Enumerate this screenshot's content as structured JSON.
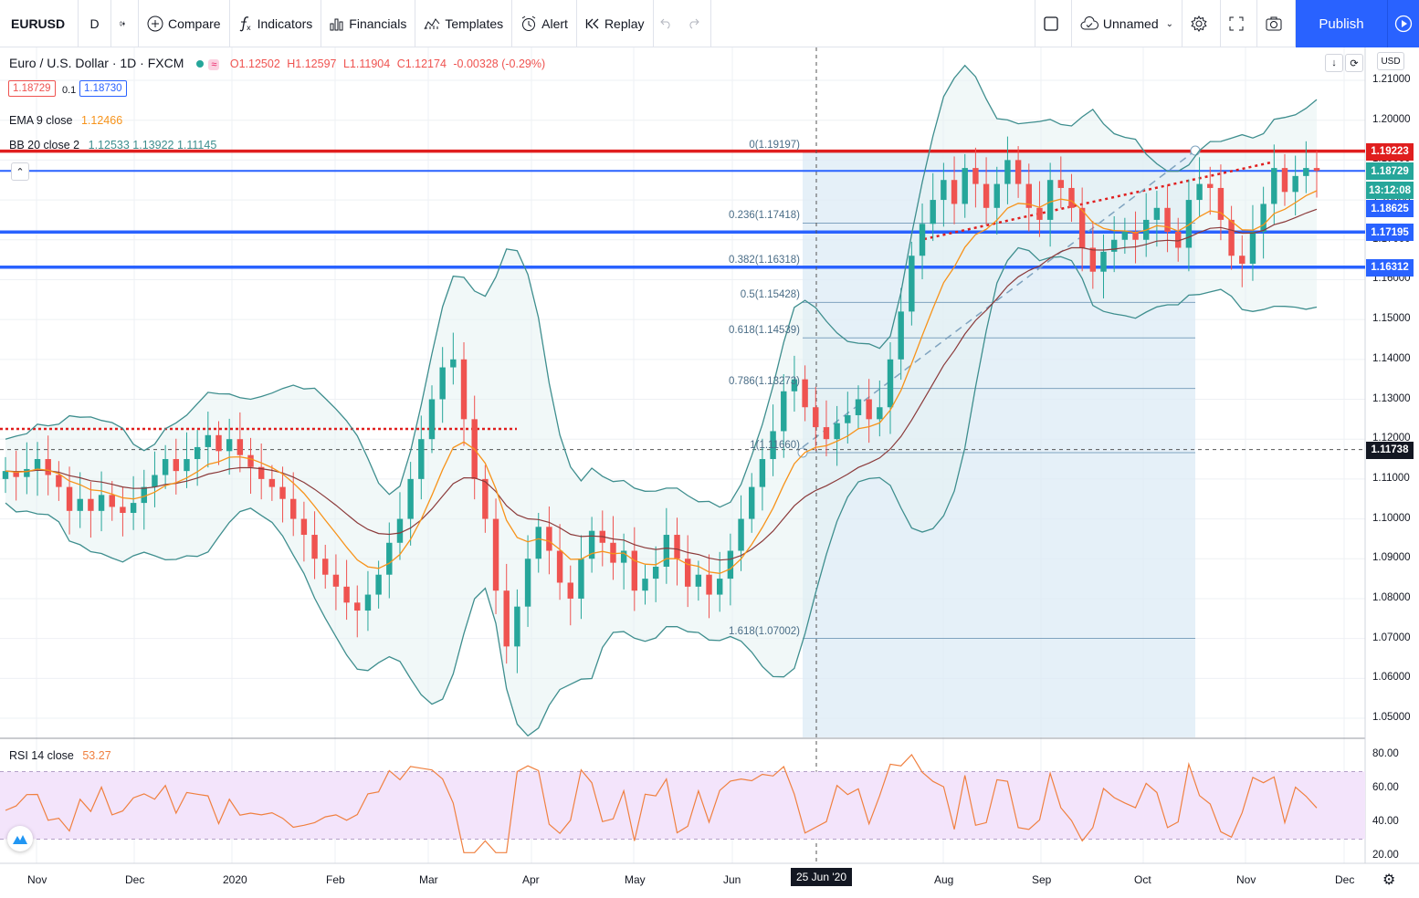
{
  "toolbar": {
    "symbol": "EURUSD",
    "interval": "D",
    "compare": "Compare",
    "indicators": "Indicators",
    "financials": "Financials",
    "templates": "Templates",
    "alert": "Alert",
    "replay": "Replay",
    "layout_name": "Unnamed",
    "publish": "Publish"
  },
  "legend": {
    "title": "Euro / U.S. Dollar · 1D · FXCM",
    "open": "O1.12502",
    "high": "H1.12597",
    "low": "L1.11904",
    "close": "C1.12174",
    "change": "-0.00328 (-0.29%)",
    "sell": "1.18729",
    "spread": "0.1",
    "buy": "1.18730",
    "ema_label": "EMA 9 close",
    "ema_value": "1.12466",
    "bb_label": "BB 20 close 2",
    "bb_values": "1.12533  1.13922  1.11145",
    "rsi_label": "RSI 14 close",
    "rsi_value": "53.27"
  },
  "currency": "USD",
  "price_axis": [
    "1.21000",
    "1.20000",
    "1.19000",
    "1.18000",
    "1.17000",
    "1.16000",
    "1.15000",
    "1.14000",
    "1.13000",
    "1.12000",
    "1.11000",
    "1.10000",
    "1.09000",
    "1.08000",
    "1.07000",
    "1.06000",
    "1.05000"
  ],
  "rsi_axis": [
    "80.00",
    "60.00",
    "40.00",
    "20.00"
  ],
  "time_axis": [
    "Nov",
    "Dec",
    "2020",
    "Feb",
    "Mar",
    "Apr",
    "May",
    "Jun",
    "Aug",
    "Sep",
    "Oct",
    "Nov",
    "Dec"
  ],
  "crosshair_date": "25 Jun '20",
  "badges": [
    {
      "text": "1.19223",
      "color": "#e01e1e"
    },
    {
      "text": "1.18729",
      "color": "#26a69a"
    },
    {
      "text": "13:12:08",
      "color": "#26a69a"
    },
    {
      "text": "1.18625",
      "color": "#2962ff"
    },
    {
      "text": "1.17195",
      "color": "#2962ff"
    },
    {
      "text": "1.16312",
      "color": "#2962ff"
    },
    {
      "text": "1.11738",
      "color": "#131722"
    }
  ],
  "fib_levels": [
    {
      "label": "0(1.19197)",
      "price": 1.19197
    },
    {
      "label": "0.236(1.17418)",
      "price": 1.17418
    },
    {
      "label": "0.382(1.16318)",
      "price": 1.16318
    },
    {
      "label": "0.5(1.15428)",
      "price": 1.15428
    },
    {
      "label": "0.618(1.14539)",
      "price": 1.14539
    },
    {
      "label": "0.786(1.13273)",
      "price": 1.13273
    },
    {
      "label": "1(1.11660)",
      "price": 1.1166
    },
    {
      "label": "1.618(1.07002)",
      "price": 1.07002
    }
  ],
  "horizontal_lines": [
    {
      "price": 1.19223,
      "color": "#e01e1e"
    },
    {
      "price": 1.18729,
      "color": "#2962ff"
    },
    {
      "price": 1.17195,
      "color": "#2962ff"
    },
    {
      "price": 1.16312,
      "color": "#2962ff"
    }
  ],
  "colors": {
    "up": "#26a69a",
    "down": "#ef5350",
    "ema": "#f7931a",
    "bb": "#3e8e8e",
    "rsi": "#f08040",
    "fib_zone": "#dcebf5"
  },
  "chart_data": {
    "type": "line",
    "close": [
      1.112,
      1.1105,
      1.1125,
      1.115,
      1.111,
      1.108,
      1.102,
      1.105,
      1.102,
      1.106,
      1.103,
      1.1015,
      1.104,
      1.108,
      1.111,
      1.115,
      1.112,
      1.115,
      1.118,
      1.121,
      1.117,
      1.12,
      1.116,
      1.113,
      1.11,
      1.108,
      1.105,
      1.1,
      1.096,
      1.09,
      1.086,
      1.083,
      1.079,
      1.077,
      1.081,
      1.086,
      1.094,
      1.1,
      1.11,
      1.12,
      1.13,
      1.138,
      1.14,
      1.125,
      1.11,
      1.1,
      1.082,
      1.068,
      1.078,
      1.09,
      1.098,
      1.092,
      1.084,
      1.08,
      1.09,
      1.097,
      1.094,
      1.089,
      1.092,
      1.082,
      1.085,
      1.088,
      1.096,
      1.09,
      1.083,
      1.086,
      1.081,
      1.085,
      1.092,
      1.1,
      1.108,
      1.115,
      1.122,
      1.132,
      1.135,
      1.128,
      1.123,
      1.12,
      1.124,
      1.126,
      1.13,
      1.125,
      1.128,
      1.14,
      1.152,
      1.166,
      1.174,
      1.18,
      1.185,
      1.179,
      1.188,
      1.184,
      1.178,
      1.184,
      1.19,
      1.184,
      1.178,
      1.175,
      1.185,
      1.183,
      1.178,
      1.168,
      1.162,
      1.167,
      1.17,
      1.172,
      1.17,
      1.175,
      1.178,
      1.172,
      1.168,
      1.18,
      1.184,
      1.183,
      1.175,
      1.166,
      1.164,
      1.172,
      1.179,
      1.188,
      1.182,
      1.186,
      1.188,
      1.1873
    ]
  }
}
